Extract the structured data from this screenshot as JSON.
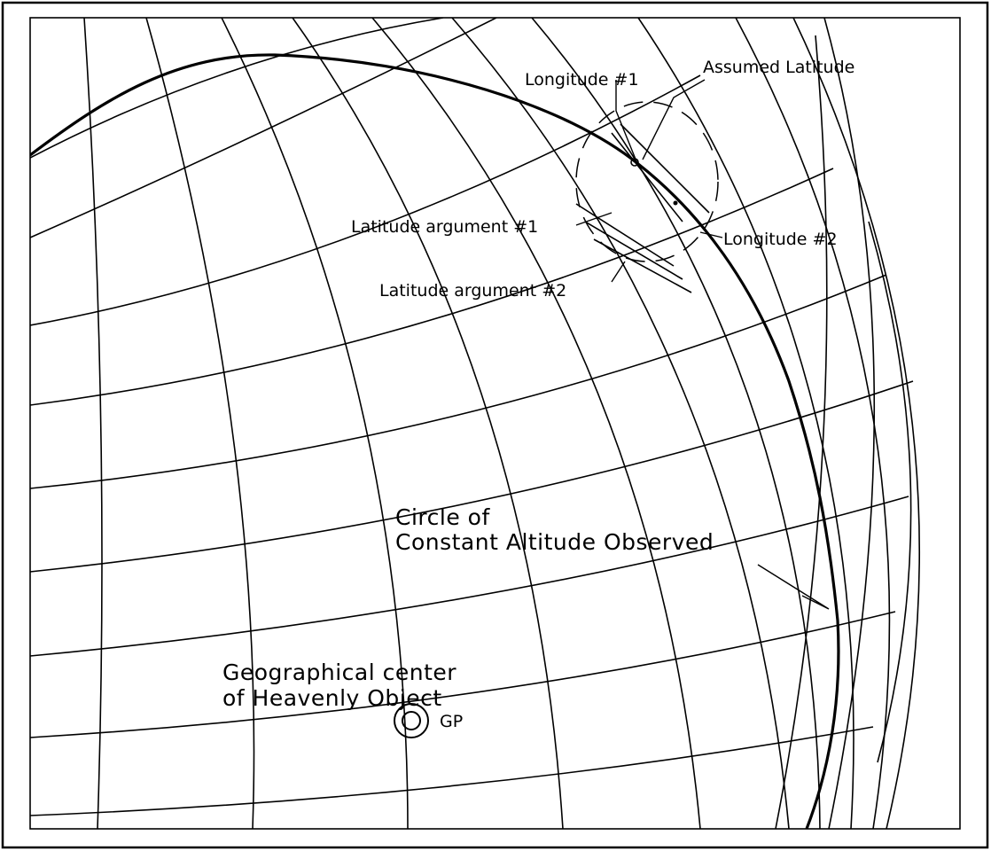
{
  "labels": {
    "longitude_1": "Longitude #1",
    "assumed_latitude": "Assumed Latitude",
    "latitude_argument_1": "Latitude argument #1",
    "longitude_2": "Longitude #2",
    "latitude_argument_2": "Latitude argument #2",
    "circle_line_1": "Circle of",
    "circle_line_2": "Constant Altitude Observed",
    "gp_description_line_1": "Geographical center",
    "gp_description_line_2": "of Heavenly Object",
    "gp_marker": "GP"
  },
  "colors": {
    "background": "#ffffff",
    "line": "#000000"
  }
}
